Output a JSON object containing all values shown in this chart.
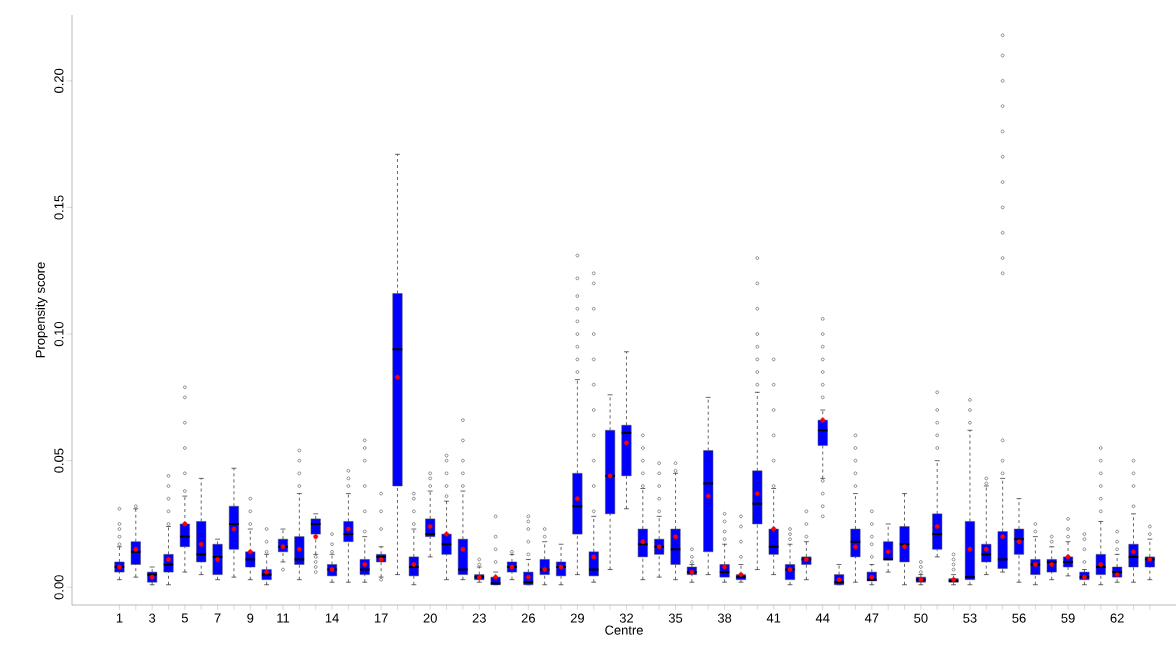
{
  "chart_data": {
    "type": "box",
    "xlabel": "Centre",
    "ylabel": "Propensity score",
    "categories": [
      "1",
      null,
      "3",
      null,
      "5",
      null,
      "7",
      null,
      "9",
      null,
      "11",
      null,
      null,
      "14",
      null,
      null,
      "17",
      null,
      null,
      "20",
      null,
      null,
      "23",
      null,
      null,
      "26",
      null,
      null,
      "29",
      null,
      null,
      "32",
      null,
      null,
      "35",
      null,
      null,
      "38",
      null,
      null,
      "41",
      null,
      null,
      "44",
      null,
      null,
      "47",
      null,
      null,
      "50",
      null,
      null,
      "53",
      null,
      null,
      "56",
      null,
      null,
      "59",
      null,
      null,
      "62",
      null,
      null
    ],
    "ylim": [
      -0.007,
      0.226
    ],
    "yticks": [
      {
        "value": 0,
        "label": "0.00"
      },
      {
        "value": 0.05,
        "label": "0.05"
      },
      {
        "value": 0.1,
        "label": "0.10"
      },
      {
        "value": 0.15,
        "label": "0.15"
      },
      {
        "value": 0.2,
        "label": "0.20"
      }
    ],
    "series": [
      {
        "color": "#0000ff",
        "boxes": [
          {
            "low": 0.003,
            "q1": 0.006,
            "median": 0.008,
            "q3": 0.01,
            "high": 0.016,
            "mean": 0.008,
            "outliers": [
              0.017,
              0.02,
              0.023,
              0.025,
              0.031
            ]
          },
          {
            "low": 0.004,
            "q1": 0.009,
            "median": 0.014,
            "q3": 0.018,
            "high": 0.031,
            "mean": 0.015,
            "outliers": [
              0.032
            ]
          },
          {
            "low": 0.001,
            "q1": 0.002,
            "median": 0.005,
            "q3": 0.006,
            "high": 0.008,
            "mean": 0.004
          },
          {
            "low": 0.001,
            "q1": 0.006,
            "median": 0.009,
            "q3": 0.013,
            "high": 0.024,
            "mean": 0.011,
            "outliers": [
              0.025,
              0.03,
              0.035,
              0.04,
              0.044
            ]
          },
          {
            "low": 0.006,
            "q1": 0.016,
            "median": 0.02,
            "q3": 0.025,
            "high": 0.036,
            "mean": 0.025,
            "outliers": [
              0.038,
              0.045,
              0.055,
              0.065,
              0.075,
              0.079
            ]
          },
          {
            "low": 0.005,
            "q1": 0.01,
            "median": 0.013,
            "q3": 0.026,
            "high": 0.043,
            "mean": 0.017
          },
          {
            "low": 0.003,
            "q1": 0.005,
            "median": 0.012,
            "q3": 0.017,
            "high": 0.019,
            "mean": 0.011
          },
          {
            "low": 0.004,
            "q1": 0.015,
            "median": 0.025,
            "q3": 0.032,
            "high": 0.047,
            "mean": 0.023
          },
          {
            "low": 0.003,
            "q1": 0.008,
            "median": 0.011,
            "q3": 0.014,
            "high": 0.023,
            "mean": 0.014,
            "outliers": [
              0.025,
              0.03,
              0.035
            ]
          },
          {
            "low": 0.001,
            "q1": 0.003,
            "median": 0.005,
            "q3": 0.007,
            "high": 0.013,
            "mean": 0.006,
            "outliers": [
              0.014,
              0.018,
              0.023
            ]
          },
          {
            "low": 0.01,
            "q1": 0.014,
            "median": 0.016,
            "q3": 0.019,
            "high": 0.023,
            "mean": 0.016,
            "outliers": [
              0.007
            ]
          },
          {
            "low": 0.003,
            "q1": 0.009,
            "median": 0.011,
            "q3": 0.02,
            "high": 0.037,
            "mean": 0.015,
            "outliers": [
              0.04,
              0.045,
              0.05,
              0.054
            ]
          },
          {
            "low": 0.013,
            "q1": 0.021,
            "median": 0.025,
            "q3": 0.027,
            "high": 0.029,
            "mean": 0.02,
            "outliers": [
              0.012,
              0.01,
              0.008,
              0.006
            ]
          },
          {
            "low": 0.002,
            "q1": 0.0045,
            "median": 0.007,
            "q3": 0.009,
            "high": 0.013,
            "mean": 0.007,
            "outliers": [
              0.014,
              0.017,
              0.021
            ]
          },
          {
            "low": 0.002,
            "q1": 0.018,
            "median": 0.021,
            "q3": 0.026,
            "high": 0.037,
            "mean": 0.023,
            "outliers": [
              0.04,
              0.043,
              0.046
            ]
          },
          {
            "low": 0.002,
            "q1": 0.005,
            "median": 0.007,
            "q3": 0.011,
            "high": 0.02,
            "mean": 0.009,
            "outliers": [
              0.022,
              0.03,
              0.04,
              0.05,
              0.055,
              0.058
            ]
          },
          {
            "low": 0.004,
            "q1": 0.01,
            "median": 0.012,
            "q3": 0.013,
            "high": 0.016,
            "mean": 0.011,
            "outliers": [
              0.003,
              0.023,
              0.03,
              0.037
            ]
          },
          {
            "low": 0.005,
            "q1": 0.04,
            "median": 0.094,
            "q3": 0.116,
            "high": 0.171,
            "mean": 0.083
          },
          {
            "low": 0.001,
            "q1": 0.0045,
            "median": 0.008,
            "q3": 0.012,
            "high": 0.023,
            "mean": 0.009,
            "outliers": [
              0.025,
              0.03,
              0.035,
              0.037
            ]
          },
          {
            "low": 0.012,
            "q1": 0.02,
            "median": 0.021,
            "q3": 0.027,
            "high": 0.038,
            "mean": 0.024,
            "outliers": [
              0.04,
              0.043,
              0.045
            ]
          },
          {
            "low": 0.003,
            "q1": 0.013,
            "median": 0.017,
            "q3": 0.021,
            "high": 0.034,
            "mean": 0.021,
            "outliers": [
              0.036,
              0.04,
              0.045,
              0.05,
              0.052
            ]
          },
          {
            "low": 0.003,
            "q1": 0.005,
            "median": 0.007,
            "q3": 0.019,
            "high": 0.038,
            "mean": 0.015,
            "outliers": [
              0.04,
              0.045,
              0.05,
              0.058,
              0.066
            ]
          },
          {
            "low": 0.002,
            "q1": 0.003,
            "median": 0.004,
            "q3": 0.005,
            "high": 0.008,
            "mean": 0.004,
            "outliers": [
              0.009,
              0.011
            ]
          },
          {
            "low": 0.001,
            "q1": 0.001,
            "median": 0.0015,
            "q3": 0.004,
            "high": 0.006,
            "mean": 0.004,
            "outliers": [
              0.01,
              0.015,
              0.02,
              0.028
            ]
          },
          {
            "low": 0.003,
            "q1": 0.006,
            "median": 0.008,
            "q3": 0.01,
            "high": 0.013,
            "mean": 0.008,
            "outliers": [
              0.014
            ]
          },
          {
            "low": 0.001,
            "q1": 0.001,
            "median": 0.002,
            "q3": 0.006,
            "high": 0.011,
            "mean": 0.004,
            "outliers": [
              0.013,
              0.018,
              0.023,
              0.026,
              0.028
            ]
          },
          {
            "low": 0.001,
            "q1": 0.005,
            "median": 0.007,
            "q3": 0.011,
            "high": 0.018,
            "mean": 0.007,
            "outliers": [
              0.02,
              0.023
            ]
          },
          {
            "low": 0.001,
            "q1": 0.0045,
            "median": 0.008,
            "q3": 0.01,
            "high": 0.017,
            "mean": 0.008
          },
          {
            "low": 0.005,
            "q1": 0.021,
            "median": 0.032,
            "q3": 0.045,
            "high": 0.082,
            "mean": 0.035,
            "outliers": [
              0.085,
              0.09,
              0.095,
              0.1,
              0.105,
              0.11,
              0.115,
              0.122,
              0.131
            ]
          },
          {
            "low": 0.002,
            "q1": 0.0045,
            "median": 0.007,
            "q3": 0.014,
            "high": 0.028,
            "mean": 0.012,
            "outliers": [
              0.03,
              0.04,
              0.05,
              0.06,
              0.07,
              0.08,
              0.09,
              0.1,
              0.11,
              0.12,
              0.124
            ]
          },
          {
            "low": 0.007,
            "q1": 0.029,
            "median": 0.044,
            "q3": 0.062,
            "high": 0.076,
            "mean": 0.044
          },
          {
            "low": 0.031,
            "q1": 0.044,
            "median": 0.061,
            "q3": 0.064,
            "high": 0.093,
            "mean": 0.057
          },
          {
            "low": 0.003,
            "q1": 0.012,
            "median": 0.017,
            "q3": 0.023,
            "high": 0.039,
            "mean": 0.018,
            "outliers": [
              0.04,
              0.045,
              0.05,
              0.055,
              0.06
            ]
          },
          {
            "low": 0.004,
            "q1": 0.013,
            "median": 0.016,
            "q3": 0.019,
            "high": 0.028,
            "mean": 0.016,
            "outliers": [
              0.03,
              0.035,
              0.04,
              0.045,
              0.049
            ]
          },
          {
            "low": 0.003,
            "q1": 0.009,
            "median": 0.015,
            "q3": 0.023,
            "high": 0.045,
            "mean": 0.02,
            "outliers": [
              0.046,
              0.049
            ]
          },
          {
            "low": 0.002,
            "q1": 0.005,
            "median": 0.006,
            "q3": 0.008,
            "high": 0.009,
            "mean": 0.006,
            "outliers": [
              0.01,
              0.012,
              0.015
            ]
          },
          {
            "low": 0.005,
            "q1": 0.014,
            "median": 0.041,
            "q3": 0.054,
            "high": 0.075,
            "mean": 0.036
          },
          {
            "low": 0.002,
            "q1": 0.004,
            "median": 0.006,
            "q3": 0.009,
            "high": 0.017,
            "mean": 0.008,
            "outliers": [
              0.019,
              0.022,
              0.026,
              0.029
            ]
          },
          {
            "low": 0.002,
            "q1": 0.003,
            "median": 0.004,
            "q3": 0.005,
            "high": 0.009,
            "mean": 0.005,
            "outliers": [
              0.012,
              0.018,
              0.024,
              0.028
            ]
          },
          {
            "low": 0.007,
            "q1": 0.025,
            "median": 0.033,
            "q3": 0.046,
            "high": 0.077,
            "mean": 0.037,
            "outliers": [
              0.08,
              0.085,
              0.09,
              0.095,
              0.1,
              0.11,
              0.12,
              0.13
            ]
          },
          {
            "low": 0.005,
            "q1": 0.013,
            "median": 0.016,
            "q3": 0.023,
            "high": 0.039,
            "mean": 0.023,
            "outliers": [
              0.04,
              0.05,
              0.06,
              0.07,
              0.08,
              0.09
            ]
          },
          {
            "low": 0.001,
            "q1": 0.003,
            "median": 0.007,
            "q3": 0.009,
            "high": 0.017,
            "mean": 0.007,
            "outliers": [
              0.019,
              0.021,
              0.023
            ]
          },
          {
            "low": 0.003,
            "q1": 0.009,
            "median": 0.011,
            "q3": 0.012,
            "high": 0.018,
            "mean": 0.011,
            "outliers": [
              0.02,
              0.025,
              0.03
            ]
          },
          {
            "low": 0.043,
            "q1": 0.056,
            "median": 0.062,
            "q3": 0.066,
            "high": 0.07,
            "mean": 0.066,
            "outliers": [
              0.028,
              0.032,
              0.037,
              0.042,
              0.075,
              0.08,
              0.085,
              0.09,
              0.095,
              0.1,
              0.106
            ]
          },
          {
            "low": 0.001,
            "q1": 0.001,
            "median": 0.002,
            "q3": 0.005,
            "high": 0.009,
            "mean": 0.003
          },
          {
            "low": 0.002,
            "q1": 0.012,
            "median": 0.018,
            "q3": 0.023,
            "high": 0.037,
            "mean": 0.016,
            "outliers": [
              0.04,
              0.045,
              0.05,
              0.055,
              0.06
            ]
          },
          {
            "low": 0.001,
            "q1": 0.0025,
            "median": 0.003,
            "q3": 0.006,
            "high": 0.009,
            "mean": 0.004,
            "outliers": [
              0.012,
              0.017,
              0.02,
              0.025,
              0.03
            ]
          },
          {
            "low": 0.006,
            "q1": 0.011,
            "median": 0.011,
            "q3": 0.018,
            "high": 0.025,
            "mean": 0.014
          },
          {
            "low": 0.001,
            "q1": 0.01,
            "median": 0.017,
            "q3": 0.024,
            "high": 0.037,
            "mean": 0.016
          },
          {
            "low": 0.001,
            "q1": 0.002,
            "median": 0.003,
            "q3": 0.004,
            "high": 0.005,
            "mean": 0.003,
            "outliers": [
              0.006,
              0.008,
              0.01
            ]
          },
          {
            "low": 0.012,
            "q1": 0.015,
            "median": 0.021,
            "q3": 0.029,
            "high": 0.05,
            "mean": 0.024,
            "outliers": [
              0.055,
              0.06,
              0.065,
              0.07,
              0.077
            ]
          },
          {
            "low": 0.001,
            "q1": 0.002,
            "median": 0.0025,
            "q3": 0.0034,
            "high": 0.005,
            "mean": 0.003,
            "outliers": [
              0.007,
              0.009,
              0.011,
              0.013
            ]
          },
          {
            "low": 0.001,
            "q1": 0.003,
            "median": 0.004,
            "q3": 0.026,
            "high": 0.062,
            "mean": 0.015,
            "outliers": [
              0.065,
              0.07,
              0.074
            ]
          },
          {
            "low": 0.005,
            "q1": 0.01,
            "median": 0.013,
            "q3": 0.017,
            "high": 0.04,
            "mean": 0.015,
            "outliers": [
              0.041,
              0.043
            ]
          },
          {
            "low": 0.006,
            "q1": 0.0074,
            "median": 0.011,
            "q3": 0.022,
            "high": 0.043,
            "mean": 0.02,
            "outliers": [
              0.045,
              0.05,
              0.058,
              0.124,
              0.13,
              0.14,
              0.15,
              0.16,
              0.17,
              0.18,
              0.19,
              0.2,
              0.21,
              0.218
            ]
          },
          {
            "low": 0.002,
            "q1": 0.013,
            "median": 0.019,
            "q3": 0.023,
            "high": 0.035,
            "mean": 0.018
          },
          {
            "low": 0.001,
            "q1": 0.005,
            "median": 0.009,
            "q3": 0.011,
            "high": 0.02,
            "mean": 0.009,
            "outliers": [
              0.022,
              0.025
            ]
          },
          {
            "low": 0.003,
            "q1": 0.006,
            "median": 0.01,
            "q3": 0.011,
            "high": 0.016,
            "mean": 0.009,
            "outliers": [
              0.018,
              0.02
            ]
          },
          {
            "low": 0.0045,
            "q1": 0.008,
            "median": 0.01,
            "q3": 0.012,
            "high": 0.018,
            "mean": 0.012,
            "outliers": [
              0.02,
              0.023,
              0.027
            ]
          },
          {
            "low": 0.001,
            "q1": 0.003,
            "median": 0.004,
            "q3": 0.006,
            "high": 0.007,
            "mean": 0.004,
            "outliers": [
              0.01,
              0.015,
              0.019,
              0.021
            ]
          },
          {
            "low": 0.001,
            "q1": 0.005,
            "median": 0.008,
            "q3": 0.013,
            "high": 0.026,
            "mean": 0.009,
            "outliers": [
              0.03,
              0.035,
              0.04,
              0.045,
              0.05,
              0.055
            ]
          },
          {
            "low": 0.002,
            "q1": 0.004,
            "median": 0.006,
            "q3": 0.008,
            "high": 0.013,
            "mean": 0.005,
            "outliers": [
              0.015,
              0.018,
              0.022
            ]
          },
          {
            "low": 0.002,
            "q1": 0.008,
            "median": 0.012,
            "q3": 0.017,
            "high": 0.029,
            "mean": 0.014,
            "outliers": [
              0.032,
              0.04,
              0.045,
              0.05
            ]
          },
          {
            "low": 0.003,
            "q1": 0.008,
            "median": 0.011,
            "q3": 0.012,
            "high": 0.019,
            "mean": 0.011,
            "outliers": [
              0.021,
              0.024
            ]
          }
        ]
      }
    ]
  }
}
